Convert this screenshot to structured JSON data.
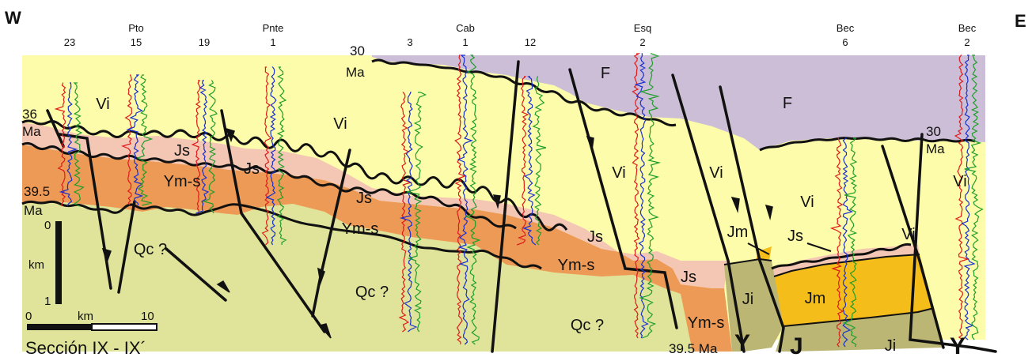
{
  "section": {
    "west_label": "W",
    "east_label": "E",
    "title": "Sección  IX  -  IX´"
  },
  "wells": [
    {
      "id": "w23",
      "name": "",
      "number": "23"
    },
    {
      "id": "w15",
      "name": "Pto",
      "number": "15"
    },
    {
      "id": "w19",
      "name": "",
      "number": "19"
    },
    {
      "id": "wpnte",
      "name": "Pnte",
      "number": "1"
    },
    {
      "id": "w3",
      "name": "",
      "number": "3"
    },
    {
      "id": "wcab",
      "name": "Cab",
      "number": "1"
    },
    {
      "id": "w12",
      "name": "",
      "number": "12"
    },
    {
      "id": "wesq",
      "name": "Esq",
      "number": "2"
    },
    {
      "id": "wbec6",
      "name": "Bec",
      "number": "6"
    },
    {
      "id": "wbec2",
      "name": "Bec",
      "number": "2"
    }
  ],
  "units": {
    "F": "F",
    "Vi": "Vi",
    "Js": "Js",
    "Ymbs": "Ym-s",
    "Qc": "Qc ?",
    "Jm": "Jm",
    "Ji": "Ji"
  },
  "ages": {
    "a30_top": "30",
    "a30_top_ma": "Ma",
    "a36": "36",
    "a36_ma": "Ma",
    "a395_left": "39.5",
    "a395_left_ma": "Ma",
    "a30_right": "30",
    "a30_right_ma": "Ma",
    "a395_bottom": "39.5 Ma"
  },
  "structures": {
    "Y1": "Y",
    "J": "J",
    "Y2": "Y"
  },
  "vertical_scale": {
    "top": "0",
    "unit": "km",
    "bottom": "1"
  },
  "horizontal_scale": {
    "start": "0",
    "unit": "km",
    "end": "10"
  },
  "colors": {
    "vi_yellow": "#fcfcaa",
    "f_purple": "#cdbed7",
    "js_pink": "#f4c6b4",
    "ym_orange": "#ec9a56",
    "qc_green": "#dfe49a",
    "jm_gold": "#f4bd1a",
    "ji_olive": "#bcb674",
    "log_red": "#e01a1a",
    "log_blue": "#1a2fd0",
    "log_green": "#1e9e2a"
  }
}
